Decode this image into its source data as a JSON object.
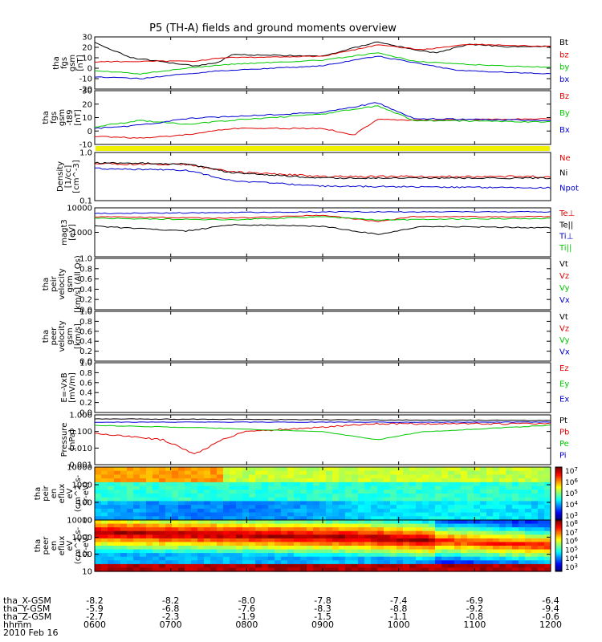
{
  "title": "P5 (TH-A) fields and ground moments overview",
  "colors": {
    "black": "#000000",
    "red": "#e00000",
    "green": "#00c800",
    "blue": "#0000d0",
    "yellow": "#f0f000"
  },
  "chart_data": [
    {
      "type": "line",
      "ylabel_lines": [
        "tha",
        "fgs",
        "gsm",
        "[nT]"
      ],
      "ylim": [
        -20,
        30
      ],
      "y_ticks": [
        "30",
        "20",
        "10",
        "0",
        "-10",
        "-20"
      ],
      "y_tick_values": [
        30,
        20,
        10,
        0,
        -10,
        -20
      ],
      "legend": [
        {
          "label": "Bt",
          "color": "black"
        },
        {
          "label": "bz",
          "color": "red"
        },
        {
          "label": "by",
          "color": "green"
        },
        {
          "label": "bx",
          "color": "blue"
        }
      ]
    },
    {
      "type": "line",
      "ylabel_lines": [
        "tha",
        "fgs",
        "gsm",
        "-t89",
        "[nT]"
      ],
      "ylim": [
        -10,
        30
      ],
      "y_ticks": [
        "30",
        "20",
        "10",
        "0",
        "-10"
      ],
      "y_tick_values": [
        30,
        20,
        10,
        0,
        -10
      ],
      "legend": [
        {
          "label": "Bz",
          "color": "red"
        },
        {
          "label": "By",
          "color": "green"
        },
        {
          "label": "Bx",
          "color": "blue"
        }
      ]
    },
    {
      "type": "line",
      "ylabel_lines": [
        "Density",
        "[1/cc]",
        "[cm^-3]"
      ],
      "ylim": [
        0.1,
        1.0
      ],
      "scale": "log",
      "y_ticks": [
        "1.0",
        "0.1"
      ],
      "y_tick_values": [
        1.0,
        0.1
      ],
      "legend": [
        {
          "label": "Ne",
          "color": "red"
        },
        {
          "label": "Ni",
          "color": "black"
        },
        {
          "label": "Npot",
          "color": "blue"
        }
      ]
    },
    {
      "type": "line",
      "ylabel_lines": [
        "magt3",
        "[eV]"
      ],
      "ylim": [
        100,
        10000
      ],
      "scale": "log",
      "y_ticks": [
        "10000",
        "1000"
      ],
      "y_tick_values": [
        10000,
        1000
      ],
      "legend": [
        {
          "label": "Te⊥",
          "color": "red"
        },
        {
          "label": "Te||",
          "color": "black"
        },
        {
          "label": "Ti⊥",
          "color": "blue"
        },
        {
          "label": "Ti||",
          "color": "green"
        }
      ]
    },
    {
      "type": "line",
      "ylabel_lines": [
        "tha",
        "peir",
        "velocity",
        "gsm",
        "[km/s] (All Qs)"
      ],
      "ylim": [
        0,
        1
      ],
      "y_ticks": [
        "1.0",
        "0.8",
        "0.6",
        "0.4",
        "0.2",
        "0.0"
      ],
      "y_tick_values": [
        1.0,
        0.8,
        0.6,
        0.4,
        0.2,
        0.0
      ],
      "legend": [
        {
          "label": "Vt",
          "color": "black"
        },
        {
          "label": "Vz",
          "color": "red"
        },
        {
          "label": "Vy",
          "color": "green"
        },
        {
          "label": "Vx",
          "color": "blue"
        }
      ]
    },
    {
      "type": "line",
      "ylabel_lines": [
        "tha",
        "peer",
        "velocity",
        "gsm",
        "[km/s]"
      ],
      "ylim": [
        0,
        1
      ],
      "y_ticks": [
        "1.0",
        "0.8",
        "0.6",
        "0.4",
        "0.2",
        "0.0"
      ],
      "y_tick_values": [
        1.0,
        0.8,
        0.6,
        0.4,
        0.2,
        0.0
      ],
      "legend": [
        {
          "label": "Vt",
          "color": "black"
        },
        {
          "label": "Vz",
          "color": "red"
        },
        {
          "label": "Vy",
          "color": "green"
        },
        {
          "label": "Vx",
          "color": "blue"
        }
      ]
    },
    {
      "type": "line",
      "ylabel_lines": [
        "E=-VxB",
        "[mV/m]"
      ],
      "ylim": [
        0,
        1
      ],
      "y_ticks": [
        "1.0",
        "0.8",
        "0.6",
        "0.4",
        "0.2",
        "0.0"
      ],
      "y_tick_values": [
        1.0,
        0.8,
        0.6,
        0.4,
        0.2,
        0.0
      ],
      "legend": [
        {
          "label": "Ez",
          "color": "red"
        },
        {
          "label": "Ey",
          "color": "green"
        },
        {
          "label": "Ex",
          "color": "blue"
        }
      ]
    },
    {
      "type": "line",
      "ylabel_lines": [
        "Pressure",
        "[nPa]"
      ],
      "ylim": [
        0.001,
        1.0
      ],
      "scale": "log",
      "y_ticks": [
        "1.000",
        "0.100",
        "0.010",
        "0.001"
      ],
      "y_tick_values": [
        1.0,
        0.1,
        0.01,
        0.001
      ],
      "legend": [
        {
          "label": "Pt",
          "color": "black"
        },
        {
          "label": "Pb",
          "color": "red"
        },
        {
          "label": "Pe",
          "color": "green"
        },
        {
          "label": "Pi",
          "color": "blue"
        }
      ]
    },
    {
      "type": "heatmap",
      "ylabel_lines": [
        "tha",
        "peir",
        "en",
        "eflux",
        "eV",
        "(cm^2-s-",
        "sr-eV)"
      ],
      "scale": "log",
      "y_ticks": [
        "10000",
        "1000",
        "100",
        "10"
      ],
      "y_tick_values": [
        10000,
        1000,
        100,
        10
      ],
      "colorbar_ticks": [
        "10^7",
        "10^6",
        "10^5",
        "10^4",
        "10^3"
      ]
    },
    {
      "type": "heatmap",
      "ylabel_lines": [
        "tha",
        "peer",
        "en",
        "eflux",
        "eV",
        "(cm^2-s-",
        "sr-eV)"
      ],
      "scale": "log",
      "y_ticks": [
        "10000",
        "1000",
        "100",
        "10"
      ],
      "y_tick_values": [
        10000,
        1000,
        100,
        10
      ],
      "colorbar_ticks": [
        "10^8",
        "10^7",
        "10^6",
        "10^5",
        "10^4",
        "10^3"
      ]
    }
  ],
  "x_axis": {
    "tick_labels": [
      "0600",
      "0700",
      "0800",
      "0900",
      "1000",
      "1100",
      "1200"
    ],
    "row_labels": [
      "tha_X-GSM",
      "tha_Y-GSM",
      "tha_Z-GSM",
      "hhmm",
      "2010 Feb 16"
    ],
    "x_gsm": [
      "-8.2",
      "-8.2",
      "-8.0",
      "-7.8",
      "-7.4",
      "-6.9",
      "-6.4"
    ],
    "y_gsm": [
      "-5.9",
      "-6.8",
      "-7.6",
      "-8.3",
      "-8.8",
      "-9.2",
      "-9.4"
    ],
    "z_gsm": [
      "-2.7",
      "-2.3",
      "-1.9",
      "-1.5",
      "-1.1",
      "-0.8",
      "-0.6"
    ]
  }
}
